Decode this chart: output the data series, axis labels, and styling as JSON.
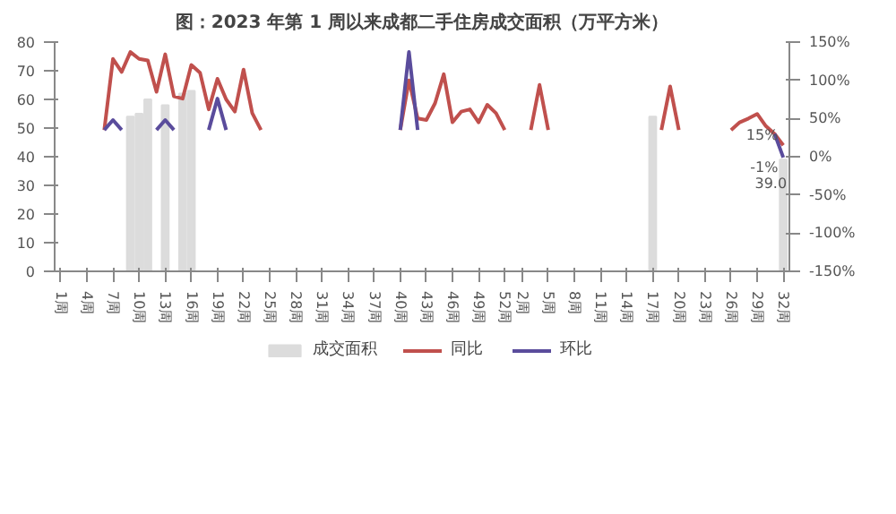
{
  "chart_data": {
    "type": "bar",
    "title": "图：2023 年第 1 周以来成都二手住房成交面积（万平方米）",
    "categories": [
      "1周",
      null,
      null,
      "4周",
      null,
      null,
      "7周",
      null,
      null,
      "10周",
      null,
      null,
      "13周",
      null,
      null,
      "16周",
      null,
      null,
      "19周",
      null,
      null,
      "22周",
      null,
      null,
      "25周",
      null,
      null,
      "28周",
      null,
      null,
      "31周",
      null,
      null,
      "34周",
      null,
      null,
      "37周",
      null,
      null,
      "40周",
      null,
      null,
      "43周",
      null,
      null,
      "46周",
      null,
      null,
      "49周",
      null,
      null,
      "52周",
      null,
      "2周",
      null,
      null,
      "5周",
      null,
      null,
      "8周",
      null,
      null,
      "11周",
      null,
      null,
      "14周",
      null,
      null,
      "17周",
      null,
      null,
      "20周",
      null,
      null,
      "23周",
      null,
      null,
      "26周",
      null,
      null,
      "29周",
      null,
      null,
      "32周"
    ],
    "series": [
      {
        "name": "成交面积",
        "color": "#dcdcdc",
        "values": [
          null,
          null,
          null,
          null,
          null,
          null,
          null,
          null,
          54,
          55,
          60,
          null,
          58,
          null,
          62,
          63,
          null,
          null,
          null,
          null,
          null,
          null,
          null,
          null,
          null,
          null,
          null,
          null,
          null,
          null,
          null,
          null,
          null,
          null,
          null,
          null,
          null,
          null,
          null,
          null,
          null,
          null,
          null,
          null,
          null,
          null,
          null,
          null,
          null,
          null,
          null,
          null,
          null,
          null,
          null,
          null,
          null,
          null,
          null,
          null,
          null,
          null,
          null,
          null,
          null,
          null,
          null,
          null,
          54,
          null,
          null,
          null,
          null,
          null,
          null,
          null,
          null,
          null,
          null,
          null,
          null,
          null,
          null,
          39.0
        ],
        "value_labels": [
          null,
          null,
          null,
          null,
          null,
          null,
          null,
          null,
          null,
          null,
          null,
          null,
          null,
          null,
          null,
          null,
          null,
          null,
          null,
          null,
          null,
          null,
          null,
          null,
          null,
          null,
          null,
          null,
          null,
          null,
          null,
          null,
          null,
          null,
          null,
          null,
          null,
          null,
          null,
          null,
          null,
          null,
          null,
          null,
          null,
          null,
          null,
          null,
          null,
          null,
          null,
          null,
          null,
          null,
          null,
          null,
          null,
          null,
          null,
          null,
          null,
          null,
          null,
          null,
          null,
          null,
          null,
          null,
          null,
          null,
          null,
          null,
          null,
          null,
          null,
          null,
          null,
          null,
          null,
          null,
          null,
          null,
          null,
          "39.0"
        ]
      },
      {
        "name": "同比",
        "type": "line",
        "axis": "y2",
        "color": "#c0504d",
        "values": [
          null,
          null,
          null,
          null,
          null,
          35,
          128,
          111,
          137,
          128,
          126,
          85,
          134,
          79,
          76,
          120,
          110,
          62,
          102,
          75,
          59,
          114,
          57,
          35,
          null,
          null,
          null,
          null,
          null,
          null,
          null,
          null,
          null,
          null,
          null,
          null,
          null,
          null,
          null,
          35,
          100,
          50,
          48,
          70,
          108,
          45,
          59,
          62,
          45,
          68,
          57,
          35,
          null,
          null,
          35,
          94,
          35,
          null,
          null,
          null,
          null,
          null,
          null,
          null,
          null,
          null,
          null,
          null,
          null,
          35,
          92,
          35,
          null,
          null,
          null,
          null,
          null,
          35,
          45,
          50,
          56,
          40,
          30,
          15
        ],
        "value_labels": [
          null,
          null,
          null,
          null,
          null,
          null,
          null,
          null,
          null,
          null,
          null,
          null,
          null,
          null,
          null,
          null,
          null,
          null,
          null,
          null,
          null,
          null,
          null,
          null,
          null,
          null,
          null,
          null,
          null,
          null,
          null,
          null,
          null,
          null,
          null,
          null,
          null,
          null,
          null,
          null,
          null,
          null,
          null,
          null,
          null,
          null,
          null,
          null,
          null,
          null,
          null,
          null,
          null,
          null,
          null,
          null,
          null,
          null,
          null,
          null,
          null,
          null,
          null,
          null,
          null,
          null,
          null,
          null,
          null,
          null,
          null,
          null,
          null,
          null,
          null,
          null,
          null,
          null,
          null,
          null,
          null,
          null,
          null,
          "15%"
        ]
      },
      {
        "name": "环比",
        "type": "line",
        "axis": "y2",
        "color": "#5a4c9c",
        "values": [
          null,
          null,
          null,
          null,
          null,
          35,
          48,
          35,
          null,
          null,
          null,
          35,
          48,
          35,
          null,
          null,
          null,
          35,
          76,
          35,
          null,
          null,
          null,
          null,
          null,
          null,
          null,
          null,
          null,
          null,
          null,
          null,
          null,
          null,
          null,
          null,
          null,
          null,
          null,
          35,
          137,
          35,
          null,
          null,
          null,
          null,
          null,
          null,
          null,
          null,
          null,
          null,
          null,
          null,
          null,
          null,
          null,
          null,
          null,
          null,
          null,
          null,
          null,
          null,
          null,
          null,
          null,
          null,
          null,
          null,
          null,
          null,
          null,
          null,
          null,
          null,
          null,
          null,
          null,
          null,
          null,
          null,
          30,
          -1
        ],
        "value_labels": [
          null,
          null,
          null,
          null,
          null,
          null,
          null,
          null,
          null,
          null,
          null,
          null,
          null,
          null,
          null,
          null,
          null,
          null,
          null,
          null,
          null,
          null,
          null,
          null,
          null,
          null,
          null,
          null,
          null,
          null,
          null,
          null,
          null,
          null,
          null,
          null,
          null,
          null,
          null,
          null,
          null,
          null,
          null,
          null,
          null,
          null,
          null,
          null,
          null,
          null,
          null,
          null,
          null,
          null,
          null,
          null,
          null,
          null,
          null,
          null,
          null,
          null,
          null,
          null,
          null,
          null,
          null,
          null,
          null,
          null,
          null,
          null,
          null,
          null,
          null,
          null,
          null,
          null,
          null,
          null,
          null,
          null,
          null,
          "-1%"
        ]
      }
    ],
    "ylim": [
      0,
      80
    ],
    "yticks": [
      0,
      10,
      20,
      30,
      40,
      50,
      60,
      70,
      80
    ],
    "y2lim": [
      -150,
      150
    ],
    "y2ticks": [
      {
        "value": -150,
        "label": "-150%"
      },
      {
        "value": -100,
        "label": "-100%"
      },
      {
        "value": -50,
        "label": "-50%"
      },
      {
        "value": 0,
        "label": "0%"
      },
      {
        "value": 50,
        "label": "50%"
      },
      {
        "value": 100,
        "label": "100%"
      },
      {
        "value": 150,
        "label": "150%"
      }
    ],
    "grid": false,
    "legend": "bottom",
    "marker": "none",
    "line_style": "solid"
  }
}
